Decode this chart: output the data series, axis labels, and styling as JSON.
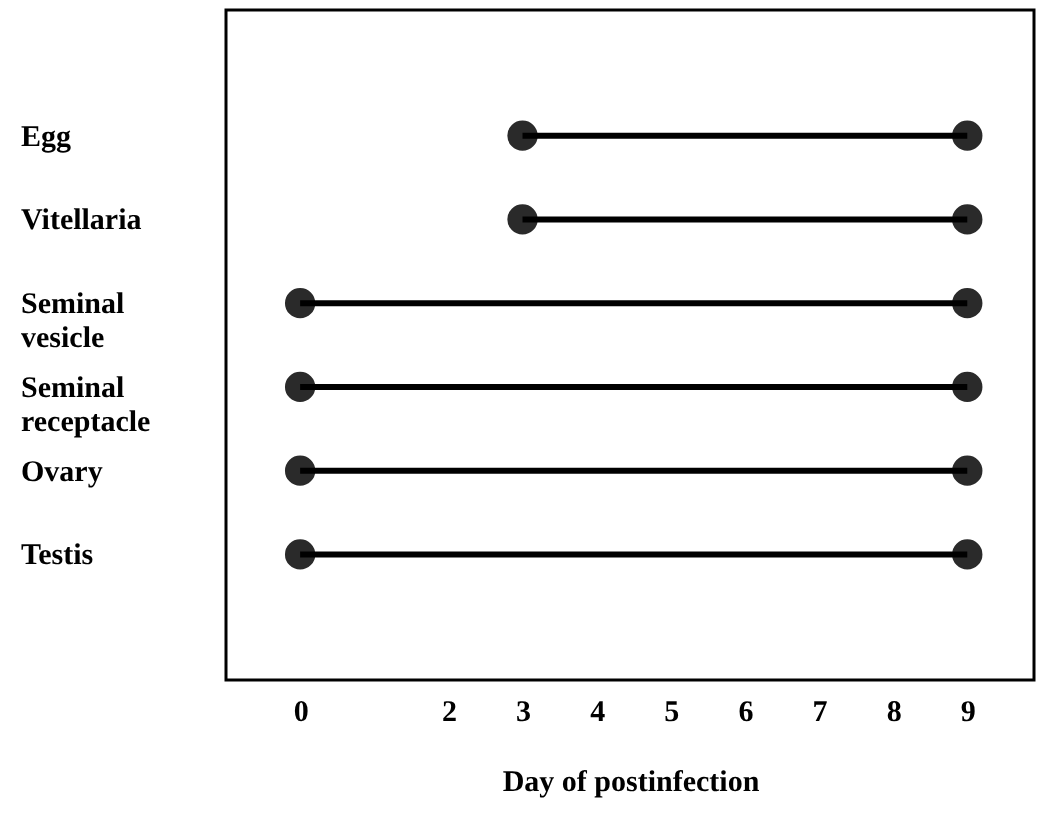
{
  "chart_data": {
    "type": "bar",
    "orientation": "horizontal",
    "marker": "circle",
    "categories": [
      "Egg",
      "Vitellaria",
      "Seminal vesicle",
      "Seminal receptacle",
      "Ovary",
      "Testis"
    ],
    "series": [
      {
        "color": "#000000",
        "base": [
          3,
          3,
          0,
          0,
          0,
          0
        ],
        "values": [
          6,
          6,
          9,
          9,
          9,
          9
        ]
      },
      {
        "type": "scatter",
        "color": "#2a2a2a",
        "values": [
          3,
          3,
          0,
          0,
          0,
          0
        ]
      },
      {
        "type": "scatter",
        "color": "#2a2a2a",
        "values": [
          9,
          9,
          9,
          9,
          9,
          9
        ]
      }
    ],
    "xlim": [
      -1,
      9.9
    ],
    "xticks": [
      0,
      2,
      3,
      4,
      5,
      6,
      7,
      8,
      9
    ],
    "xlabel": "Day of postinfection",
    "grid": false
  }
}
